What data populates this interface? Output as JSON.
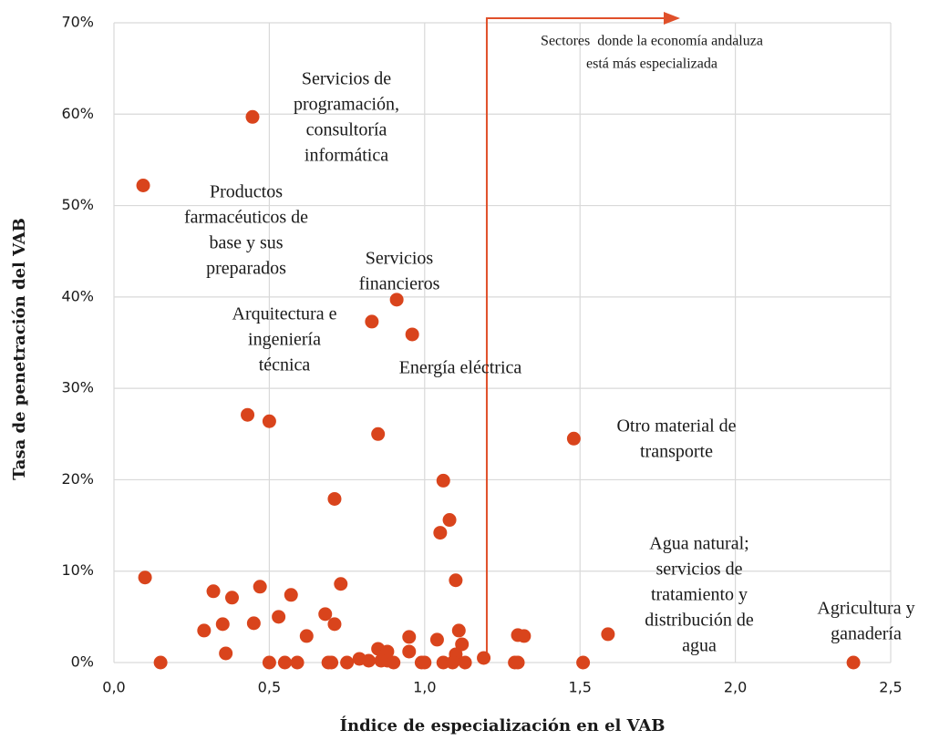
{
  "chart_data": {
    "type": "scatter",
    "x_label": "Índice de especialización en el VAB",
    "y_label": "Tasa de penetración del VAB",
    "xlim": [
      0,
      2.5
    ],
    "ylim": [
      0,
      70
    ],
    "xticks": [
      {
        "value": 0,
        "label": "0,0"
      },
      {
        "value": 0.5,
        "label": "0,5"
      },
      {
        "value": 1,
        "label": "1,0"
      },
      {
        "value": 1.5,
        "label": "1,5"
      },
      {
        "value": 2,
        "label": "2,0"
      },
      {
        "value": 2.5,
        "label": "2,5"
      }
    ],
    "yticks": [
      {
        "value": 0,
        "label": "0%"
      },
      {
        "value": 10,
        "label": "10%"
      },
      {
        "value": 20,
        "label": "20%"
      },
      {
        "value": 30,
        "label": "30%"
      },
      {
        "value": 40,
        "label": "40%"
      },
      {
        "value": 50,
        "label": "50%"
      },
      {
        "value": 60,
        "label": "60%"
      },
      {
        "value": 70,
        "label": "70%"
      }
    ],
    "grid": true,
    "color": "#d9441c",
    "divider_x": 1.2,
    "divider_color": "#e0502a",
    "x": [
      0.446,
      0.094,
      0.91,
      0.83,
      0.96,
      0.43,
      0.5,
      0.85,
      1.48,
      1.06,
      0.71,
      1.08,
      1.05,
      0.1,
      1.1,
      0.73,
      0.32,
      0.47,
      0.38,
      0.57,
      0.68,
      0.53,
      0.45,
      0.35,
      0.71,
      0.29,
      0.62,
      1.11,
      1.59,
      1.3,
      1.32,
      0.95,
      1.04,
      1.12,
      0.85,
      0.88,
      0.95,
      1.1,
      1.19,
      0.79,
      0.82,
      0.86,
      0.88,
      0.36,
      0.15,
      0.5,
      0.55,
      0.59,
      0.69,
      0.7,
      0.75,
      0.9,
      0.99,
      1.0,
      1.06,
      1.09,
      1.13,
      1.29,
      1.3,
      1.51,
      2.38
    ],
    "y": [
      59.7,
      52.2,
      39.7,
      37.3,
      35.9,
      27.1,
      26.4,
      25.0,
      24.5,
      19.9,
      17.9,
      15.6,
      14.2,
      9.3,
      9.0,
      8.6,
      7.8,
      8.3,
      7.1,
      7.4,
      5.3,
      5.0,
      4.3,
      4.2,
      4.2,
      3.5,
      2.9,
      3.5,
      3.1,
      3.0,
      2.9,
      2.8,
      2.5,
      2.0,
      1.5,
      1.2,
      1.2,
      0.9,
      0.5,
      0.4,
      0.2,
      0.2,
      0.2,
      1.0,
      0,
      0,
      0,
      0,
      0,
      0,
      0,
      0,
      0,
      0,
      0,
      0,
      0,
      0,
      0,
      0,
      0
    ],
    "annotations": [
      {
        "lines": [
          "Servicios de",
          "programación,",
          "consultoría",
          "informática"
        ]
      },
      {
        "lines": [
          "Productos",
          "farmacéuticos de",
          "base y sus",
          "preparados"
        ]
      },
      {
        "lines": [
          "Servicios",
          "financieros"
        ]
      },
      {
        "lines": [
          "Arquitectura e",
          "ingeniería",
          "técnica"
        ]
      },
      {
        "lines": [
          "Energía eléctrica"
        ]
      },
      {
        "lines": [
          "Otro material de",
          "transporte"
        ]
      },
      {
        "lines": [
          "Agua natural;",
          "servicios de",
          "tratamiento y",
          "distribución de",
          "agua"
        ]
      },
      {
        "lines": [
          "Agricultura y",
          "ganadería"
        ]
      },
      {
        "lines": [
          "Sectores  donde la economía andaluza",
          "está más especializada"
        ]
      }
    ]
  }
}
